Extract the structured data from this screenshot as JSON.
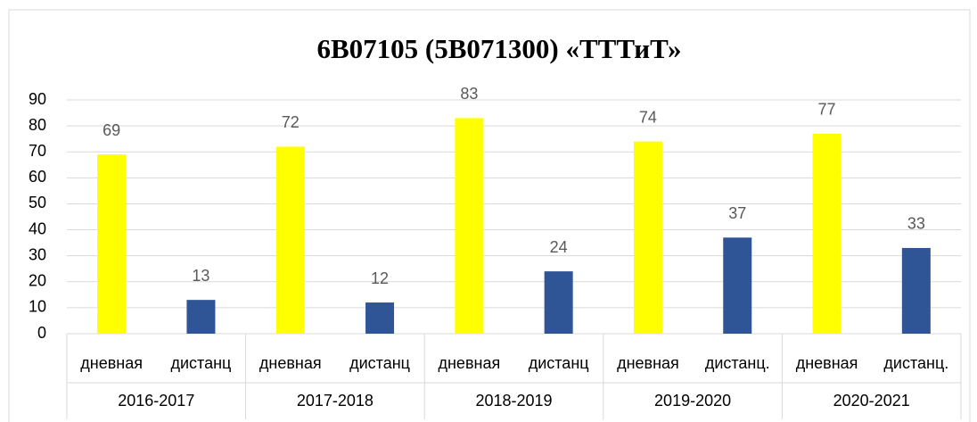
{
  "chart_data": {
    "type": "bar",
    "title": "6B07105 (5B071300) «ТТТиТ»",
    "groups": [
      "2016-2017",
      "2017-2018",
      "2018-2019",
      "2019-2020",
      "2020-2021"
    ],
    "categories": [
      "дневная",
      "дистанц",
      "дневная",
      "дистанц",
      "дневная",
      "дистанц",
      "дневная",
      "дистанц.",
      "дневная",
      "дистанц."
    ],
    "values": [
      69,
      13,
      72,
      12,
      83,
      24,
      74,
      37,
      77,
      33
    ],
    "colors": [
      "#ffff00",
      "#2f5597",
      "#ffff00",
      "#2f5597",
      "#ffff00",
      "#2f5597",
      "#ffff00",
      "#2f5597",
      "#ffff00",
      "#2f5597"
    ],
    "ylim": [
      0,
      90
    ],
    "yticks": [
      0,
      10,
      20,
      30,
      40,
      50,
      60,
      70,
      80,
      90
    ],
    "grid": true
  }
}
